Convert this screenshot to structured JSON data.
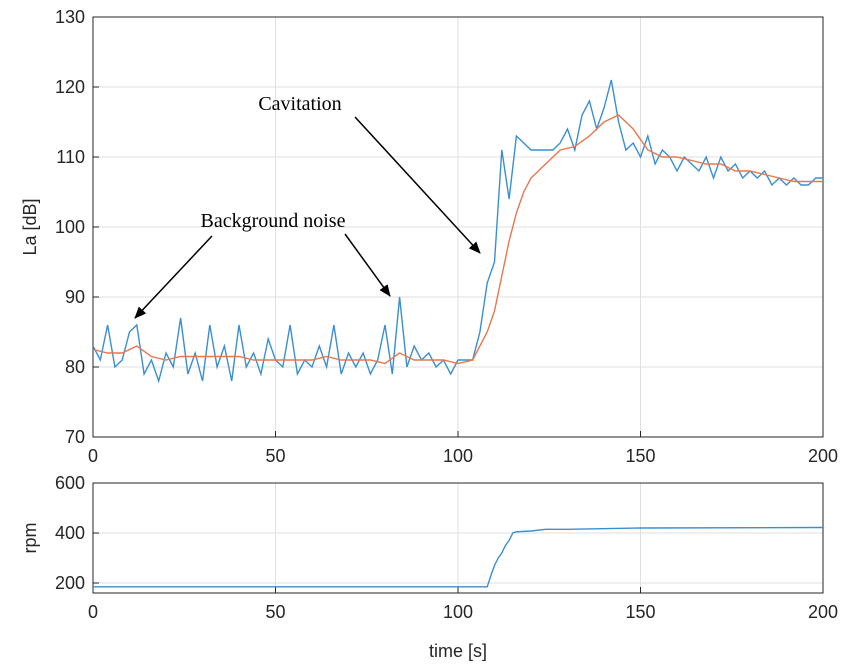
{
  "chart_data": [
    {
      "type": "line",
      "ylabel": "La [dB]",
      "xlim": [
        0,
        200
      ],
      "xticks": [
        0,
        50,
        100,
        150,
        200
      ],
      "ylim": [
        70,
        130
      ],
      "yticks": [
        70,
        80,
        90,
        100,
        110,
        120,
        130
      ],
      "grid": true,
      "annotations": [
        "Cavitation",
        "Background noise"
      ],
      "series": [
        {
          "color": "#3a8fd0",
          "x": [
            0,
            2,
            4,
            6,
            8,
            10,
            12,
            14,
            16,
            18,
            20,
            22,
            24,
            26,
            28,
            30,
            32,
            34,
            36,
            38,
            40,
            42,
            44,
            46,
            48,
            50,
            52,
            54,
            56,
            58,
            60,
            62,
            64,
            66,
            68,
            70,
            72,
            74,
            76,
            78,
            80,
            82,
            84,
            86,
            88,
            90,
            92,
            94,
            96,
            98,
            100,
            102,
            104,
            106,
            108,
            110,
            112,
            114,
            116,
            118,
            120,
            122,
            124,
            126,
            128,
            130,
            132,
            134,
            136,
            138,
            140,
            142,
            144,
            146,
            148,
            150,
            152,
            154,
            156,
            158,
            160,
            162,
            164,
            166,
            168,
            170,
            172,
            174,
            176,
            178,
            180,
            182,
            184,
            186,
            188,
            190,
            192,
            194,
            196,
            198,
            200
          ],
          "values": [
            83,
            81,
            86,
            80,
            81,
            85,
            86,
            79,
            81,
            78,
            82,
            80,
            87,
            79,
            82,
            78,
            86,
            80,
            83,
            78,
            86,
            80,
            82,
            79,
            84,
            81,
            80,
            86,
            79,
            81,
            80,
            83,
            80,
            86,
            79,
            82,
            80,
            82,
            79,
            81,
            86,
            79,
            90,
            80,
            83,
            81,
            82,
            80,
            81,
            79,
            81,
            81,
            81,
            85,
            92,
            95,
            111,
            104,
            113,
            112,
            111,
            111,
            111,
            111,
            112,
            114,
            111,
            116,
            118,
            114,
            117,
            121,
            115,
            111,
            112,
            110,
            113,
            109,
            111,
            110,
            108,
            110,
            109,
            108,
            110,
            107,
            110,
            108,
            109,
            107,
            108,
            107,
            108,
            106,
            107,
            106,
            107,
            106,
            106,
            107,
            107
          ]
        },
        {
          "color": "#e8774f",
          "x": [
            0,
            4,
            8,
            12,
            16,
            20,
            24,
            28,
            32,
            36,
            40,
            44,
            48,
            52,
            56,
            60,
            64,
            68,
            72,
            76,
            80,
            84,
            88,
            92,
            96,
            100,
            104,
            108,
            110,
            112,
            114,
            116,
            118,
            120,
            124,
            128,
            132,
            136,
            140,
            144,
            148,
            152,
            156,
            160,
            164,
            168,
            172,
            176,
            180,
            184,
            188,
            192,
            196,
            200
          ],
          "values": [
            82.5,
            82,
            82,
            83,
            81.5,
            81,
            81.5,
            81.5,
            81.5,
            81.5,
            81.5,
            81,
            81,
            81,
            81,
            81,
            81.5,
            81,
            81,
            81,
            80.5,
            82,
            81,
            81,
            81,
            80.5,
            81,
            85,
            88,
            93,
            98,
            102,
            105,
            107,
            109,
            111,
            111.5,
            113,
            115,
            116,
            114,
            111,
            110,
            110,
            109.5,
            109,
            109,
            108,
            108,
            107.5,
            107,
            106.5,
            106.5,
            106.5
          ]
        }
      ]
    },
    {
      "type": "line",
      "ylabel": "rpm",
      "xlabel": "time [s]",
      "xlim": [
        0,
        200
      ],
      "xticks": [
        0,
        50,
        100,
        150,
        200
      ],
      "ylim": [
        160,
        600
      ],
      "yticks": [
        200,
        400,
        600
      ],
      "grid": true,
      "series": [
        {
          "color": "#3a8fd0",
          "x": [
            0,
            108,
            109,
            110,
            111,
            112,
            113,
            114,
            115,
            116,
            120,
            124,
            130,
            150,
            200
          ],
          "values": [
            185,
            185,
            230,
            270,
            300,
            320,
            350,
            370,
            400,
            405,
            408,
            415,
            415,
            420,
            422
          ]
        }
      ]
    }
  ]
}
